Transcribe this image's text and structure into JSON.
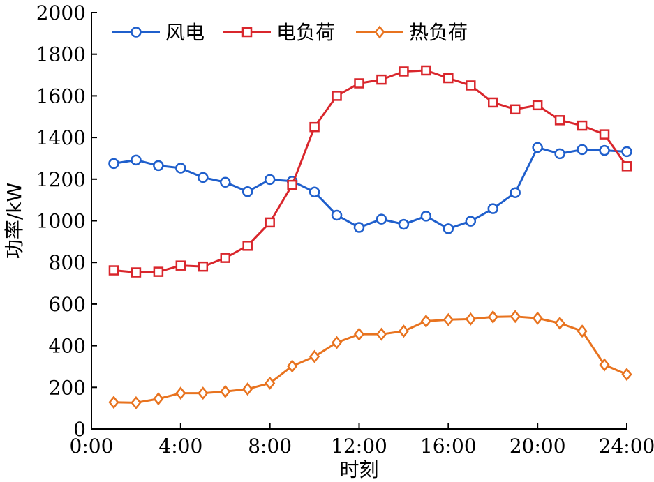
{
  "chart_data": {
    "type": "line",
    "title": "",
    "xlabel": "时刻",
    "ylabel": "功率/kW",
    "xlim": [
      0,
      24
    ],
    "ylim": [
      0,
      2000
    ],
    "xticks": [
      0,
      4,
      8,
      12,
      16,
      20,
      24
    ],
    "xtick_labels": [
      "0:00",
      "4:00",
      "8:00",
      "12:00",
      "16:00",
      "20:00",
      "24:00"
    ],
    "yticks": [
      0,
      200,
      400,
      600,
      800,
      1000,
      1200,
      1400,
      1600,
      1800,
      2000
    ],
    "ytick_labels": [
      "0",
      "200",
      "400",
      "600",
      "800",
      "1000",
      "1200",
      "1400",
      "1600",
      "1800",
      "2000"
    ],
    "grid": false,
    "legend_position": "top-left",
    "x": [
      1,
      2,
      3,
      4,
      5,
      6,
      7,
      8,
      9,
      10,
      11,
      12,
      13,
      14,
      15,
      16,
      17,
      18,
      19,
      20,
      21,
      22,
      23,
      24
    ],
    "series": [
      {
        "name": "风电",
        "color": "#1f5fcc",
        "marker": "circle",
        "values": [
          1275,
          1292,
          1265,
          1253,
          1208,
          1185,
          1140,
          1198,
          1190,
          1138,
          1027,
          968,
          1008,
          983,
          1022,
          962,
          998,
          1058,
          1135,
          1352,
          1322,
          1342,
          1338,
          1332
        ]
      },
      {
        "name": "电负荷",
        "color": "#d9262c",
        "marker": "square",
        "values": [
          762,
          752,
          755,
          785,
          780,
          822,
          880,
          992,
          1172,
          1450,
          1600,
          1660,
          1678,
          1717,
          1722,
          1685,
          1650,
          1568,
          1535,
          1555,
          1483,
          1457,
          1415,
          1262
        ]
      },
      {
        "name": "热负荷",
        "color": "#e8731f",
        "marker": "diamond",
        "values": [
          128,
          126,
          145,
          172,
          172,
          180,
          192,
          220,
          302,
          348,
          415,
          455,
          455,
          470,
          518,
          525,
          528,
          538,
          540,
          532,
          508,
          470,
          308,
          262
        ]
      }
    ]
  }
}
